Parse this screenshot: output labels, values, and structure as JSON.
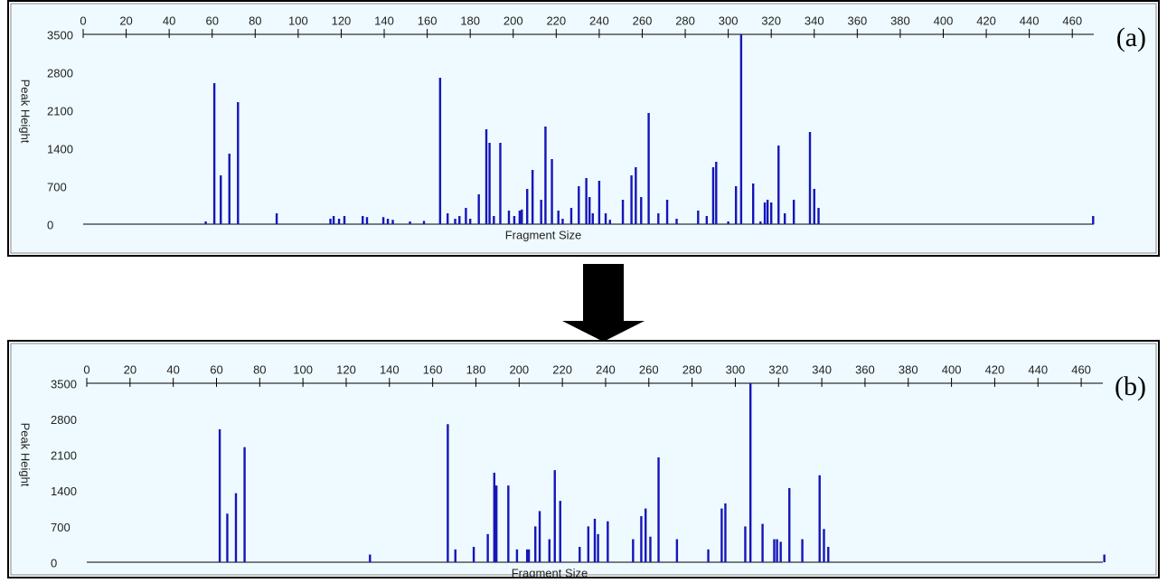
{
  "chart_data": [
    {
      "type": "bar",
      "label": "(a)",
      "x_label": "Fragment Size",
      "y_label": "Peak Height",
      "color": "#1515b8",
      "xlim": [
        0,
        470
      ],
      "ylim": [
        0,
        3500
      ],
      "xticks": [
        0,
        20,
        40,
        60,
        80,
        100,
        120,
        140,
        160,
        180,
        200,
        220,
        240,
        260,
        280,
        300,
        320,
        340,
        360,
        380,
        400,
        420,
        440,
        460
      ],
      "yticks": [
        0,
        700,
        1400,
        2100,
        2800,
        3500
      ],
      "x": [
        57,
        61,
        64,
        68,
        72,
        90,
        115,
        116.5,
        119,
        121.5,
        130,
        132,
        139.6,
        141.7,
        144,
        152,
        158.5,
        166,
        169.5,
        173,
        175,
        178,
        180,
        184,
        187.5,
        189,
        191,
        194,
        198,
        200.5,
        203,
        204,
        206.5,
        209,
        213,
        215,
        218,
        221,
        223,
        227,
        230.5,
        234,
        235.5,
        237,
        240,
        243,
        245,
        251,
        255,
        257,
        259.5,
        263,
        267.5,
        271.6,
        276,
        286,
        290,
        293,
        294.4,
        300,
        303.6,
        306,
        311.6,
        315,
        317,
        318.3,
        320,
        323.4,
        326.3,
        330.5,
        338,
        340,
        342,
        469.7
      ],
      "values": [
        50,
        2600,
        900,
        1300,
        2250,
        200,
        100,
        150,
        100,
        150,
        150,
        130,
        130,
        100,
        80,
        50,
        60,
        2700,
        200,
        100,
        150,
        300,
        100,
        550,
        1750,
        1500,
        150,
        1500,
        250,
        150,
        250,
        270,
        650,
        1000,
        450,
        1800,
        1200,
        250,
        100,
        300,
        700,
        850,
        500,
        200,
        800,
        200,
        80,
        450,
        900,
        1050,
        500,
        2050,
        200,
        450,
        100,
        250,
        150,
        1050,
        1150,
        50,
        700,
        3500,
        750,
        50,
        400,
        450,
        400,
        1450,
        200,
        450,
        1700,
        650,
        300,
        150
      ]
    },
    {
      "type": "bar",
      "label": "(b)",
      "x_label": "Fragment Size",
      "y_label": "Peak Height",
      "color": "#1515b8",
      "xlim": [
        0,
        470
      ],
      "ylim": [
        0,
        3500
      ],
      "xticks": [
        0,
        20,
        40,
        60,
        80,
        100,
        120,
        140,
        160,
        180,
        200,
        220,
        240,
        260,
        280,
        300,
        320,
        340,
        360,
        380,
        400,
        420,
        440,
        460
      ],
      "yticks": [
        0,
        700,
        1400,
        2100,
        2800,
        3500
      ],
      "x": [
        61.5,
        65,
        69,
        73,
        131,
        167,
        170.5,
        179,
        185.5,
        188.5,
        189.5,
        195,
        199,
        203.7,
        204.5,
        207.5,
        209.5,
        214,
        216.5,
        219,
        228,
        232,
        235,
        236.5,
        241,
        252.7,
        256.5,
        258.5,
        260.7,
        264.5,
        273,
        287.5,
        293.7,
        295.4,
        304.6,
        307,
        312.6,
        318,
        319.3,
        321,
        325,
        331,
        339,
        341,
        343,
        470.7
      ],
      "values": [
        2600,
        950,
        1350,
        2250,
        150,
        2700,
        250,
        300,
        550,
        1750,
        1500,
        1500,
        250,
        250,
        250,
        700,
        1000,
        450,
        1800,
        1200,
        300,
        700,
        850,
        550,
        800,
        450,
        900,
        1050,
        500,
        2050,
        450,
        250,
        1050,
        1150,
        700,
        3500,
        750,
        450,
        450,
        400,
        1450,
        450,
        1700,
        650,
        300,
        150
      ]
    }
  ]
}
